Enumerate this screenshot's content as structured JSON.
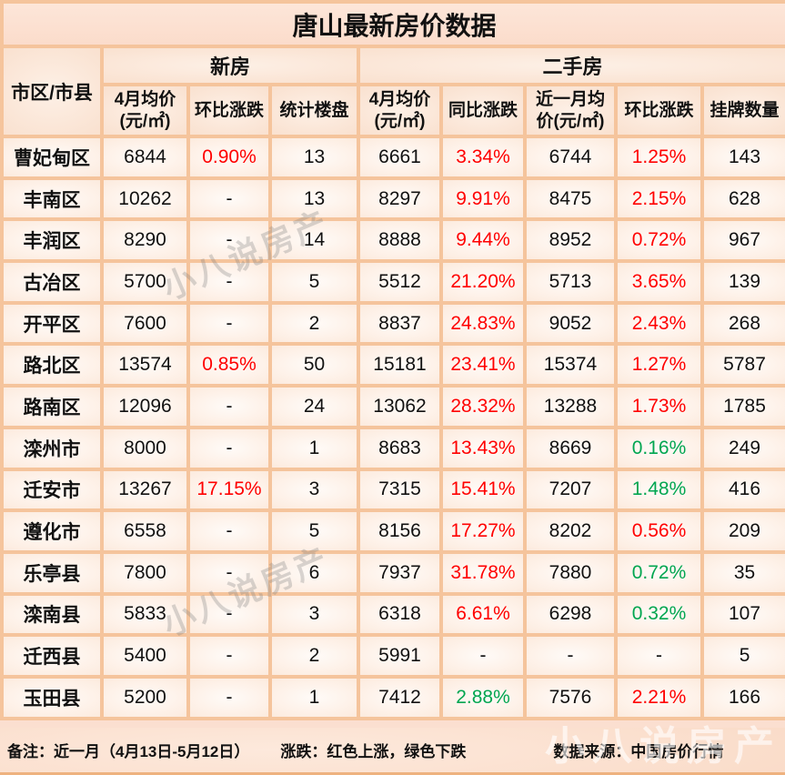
{
  "title": "唐山最新房价数据",
  "header": {
    "region_col": "市区/市县",
    "group_new": "新房",
    "group_secondhand": "二手房",
    "subheaders": [
      "4月均价\n(元/㎡)",
      "环比涨跌",
      "统计楼盘",
      "4月均价\n(元/㎡)",
      "同比涨跌",
      "近一月均\n价(元/㎡)",
      "环比涨跌",
      "挂牌数量"
    ]
  },
  "chart_data": {
    "type": "table",
    "title": "唐山最新房价数据",
    "column_groups": [
      {
        "label": "新房",
        "span": 3
      },
      {
        "label": "二手房",
        "span": 5
      }
    ],
    "columns": [
      "市区/市县",
      "新房4月均价(元/㎡)",
      "新房环比涨跌",
      "统计楼盘",
      "二手房4月均价(元/㎡)",
      "二手房同比涨跌",
      "近一月均价(元/㎡)",
      "二手房环比涨跌",
      "挂牌数量"
    ],
    "rows": [
      {
        "region": "曹妃甸区",
        "values": [
          "6844",
          "0.90%",
          "13",
          "6661",
          "3.34%",
          "6744",
          "1.25%",
          "143"
        ],
        "colors": [
          null,
          "up",
          null,
          null,
          "up",
          null,
          "up",
          null
        ]
      },
      {
        "region": "丰南区",
        "values": [
          "10262",
          "-",
          "13",
          "8297",
          "9.91%",
          "8475",
          "2.15%",
          "628"
        ],
        "colors": [
          null,
          null,
          null,
          null,
          "up",
          null,
          "up",
          null
        ]
      },
      {
        "region": "丰润区",
        "values": [
          "8290",
          "-",
          "14",
          "8888",
          "9.44%",
          "8952",
          "0.72%",
          "967"
        ],
        "colors": [
          null,
          null,
          null,
          null,
          "up",
          null,
          "up",
          null
        ]
      },
      {
        "region": "古冶区",
        "values": [
          "5700",
          "-",
          "5",
          "5512",
          "21.20%",
          "5713",
          "3.65%",
          "139"
        ],
        "colors": [
          null,
          null,
          null,
          null,
          "up",
          null,
          "up",
          null
        ]
      },
      {
        "region": "开平区",
        "values": [
          "7600",
          "-",
          "2",
          "8837",
          "24.83%",
          "9052",
          "2.43%",
          "268"
        ],
        "colors": [
          null,
          null,
          null,
          null,
          "up",
          null,
          "up",
          null
        ]
      },
      {
        "region": "路北区",
        "values": [
          "13574",
          "0.85%",
          "50",
          "15181",
          "23.41%",
          "15374",
          "1.27%",
          "5787"
        ],
        "colors": [
          null,
          "up",
          null,
          null,
          "up",
          null,
          "up",
          null
        ]
      },
      {
        "region": "路南区",
        "values": [
          "12096",
          "-",
          "24",
          "13062",
          "28.32%",
          "13288",
          "1.73%",
          "1785"
        ],
        "colors": [
          null,
          null,
          null,
          null,
          "up",
          null,
          "up",
          null
        ]
      },
      {
        "region": "滦州市",
        "values": [
          "8000",
          "-",
          "1",
          "8683",
          "13.43%",
          "8669",
          "0.16%",
          "249"
        ],
        "colors": [
          null,
          null,
          null,
          null,
          "up",
          null,
          "down",
          null
        ]
      },
      {
        "region": "迁安市",
        "values": [
          "13267",
          "17.15%",
          "3",
          "7315",
          "15.41%",
          "7207",
          "1.48%",
          "416"
        ],
        "colors": [
          null,
          "up",
          null,
          null,
          "up",
          null,
          "down",
          null
        ]
      },
      {
        "region": "遵化市",
        "values": [
          "6558",
          "-",
          "5",
          "8156",
          "17.27%",
          "8202",
          "0.56%",
          "209"
        ],
        "colors": [
          null,
          null,
          null,
          null,
          "up",
          null,
          "up",
          null
        ]
      },
      {
        "region": "乐亭县",
        "values": [
          "7800",
          "-",
          "6",
          "7937",
          "31.78%",
          "7880",
          "0.72%",
          "35"
        ],
        "colors": [
          null,
          null,
          null,
          null,
          "up",
          null,
          "down",
          null
        ]
      },
      {
        "region": "滦南县",
        "values": [
          "5833",
          "-",
          "3",
          "6318",
          "6.61%",
          "6298",
          "0.32%",
          "107"
        ],
        "colors": [
          null,
          null,
          null,
          null,
          "up",
          null,
          "down",
          null
        ]
      },
      {
        "region": "迁西县",
        "values": [
          "5400",
          "-",
          "2",
          "5991",
          "-",
          "-",
          "-",
          "5"
        ],
        "colors": [
          null,
          null,
          null,
          null,
          null,
          null,
          null,
          null
        ]
      },
      {
        "region": "玉田县",
        "values": [
          "5200",
          "-",
          "1",
          "7412",
          "2.88%",
          "7576",
          "2.21%",
          "166"
        ],
        "colors": [
          null,
          null,
          null,
          null,
          "down",
          null,
          "up",
          null
        ]
      }
    ],
    "color_legend": {
      "up": "红色上涨",
      "down": "绿色下跌"
    }
  },
  "footer": {
    "note": "备注：近一月（4月13日-5月12日）",
    "legend": "涨跌：红色上涨，绿色下跌",
    "source": "数据来源：中国房价行情"
  },
  "watermark": "小八说房产",
  "colors": {
    "up": "#ff0000",
    "down": "#00a651",
    "border": "#f5c49c",
    "background": "#fbdfd0"
  }
}
